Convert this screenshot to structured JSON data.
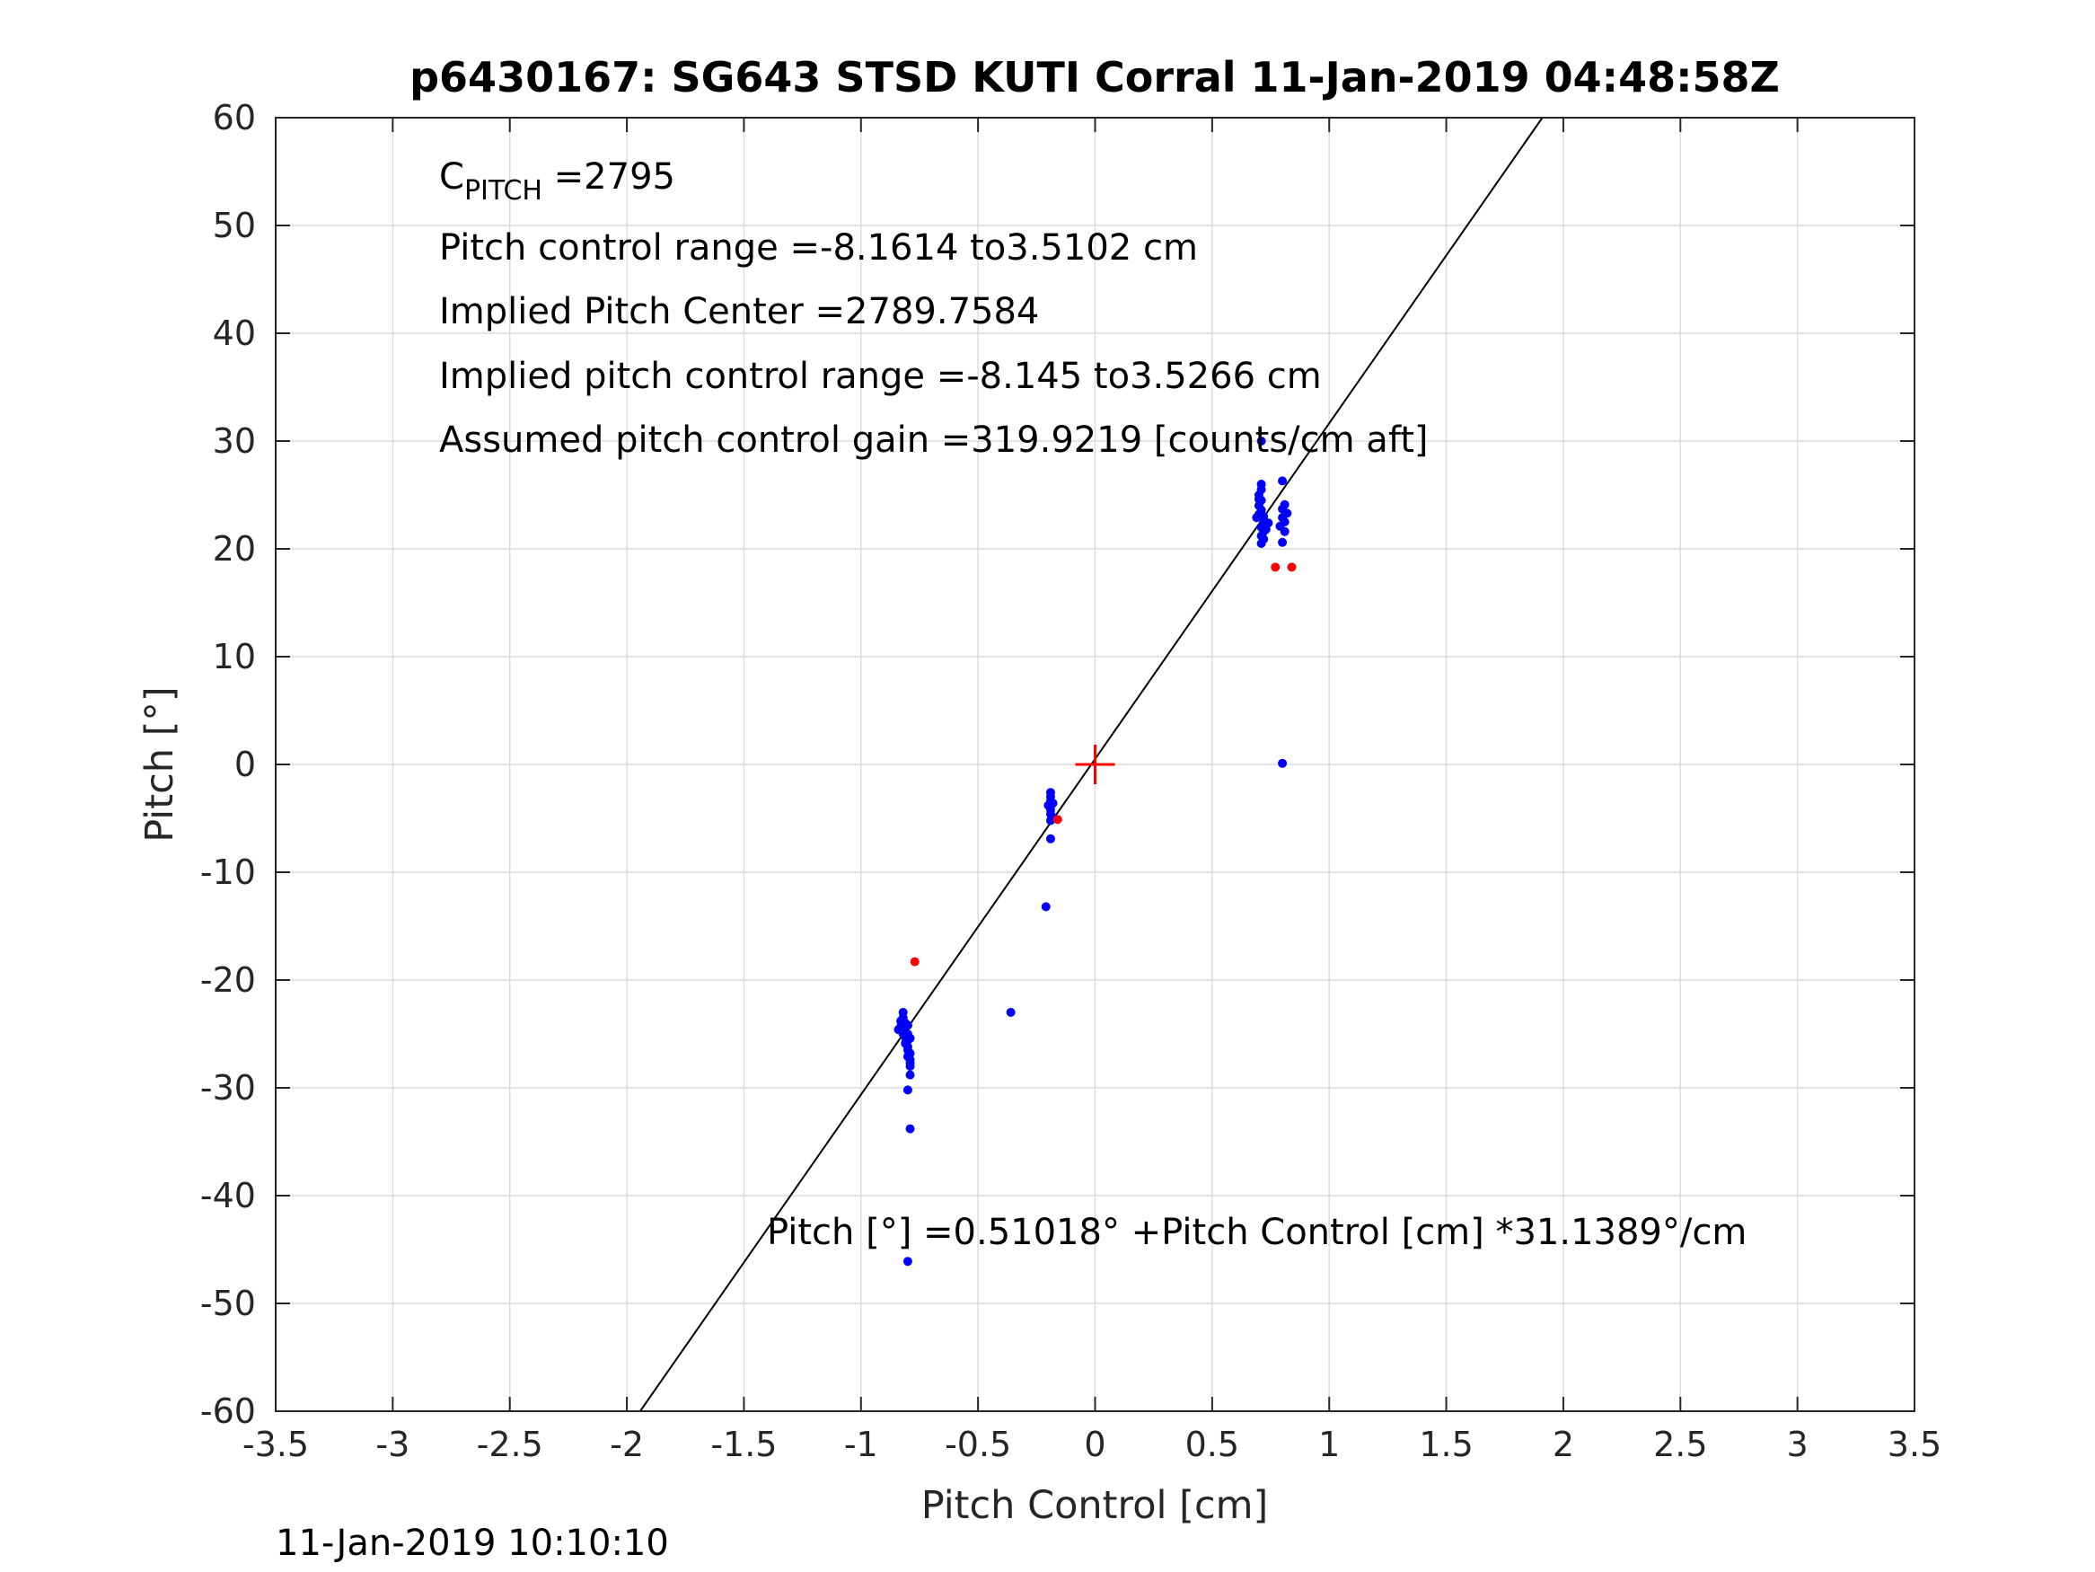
{
  "chart_data": {
    "type": "scatter",
    "title": "p6430167: SG643 STSD KUTI Corral 11-Jan-2019 04:48:58Z",
    "xlabel": "Pitch Control [cm]",
    "ylabel": "Pitch [°]",
    "xlim": [
      -3.5,
      3.5
    ],
    "ylim": [
      -60,
      60
    ],
    "xticks": [
      -3.5,
      -3,
      -2.5,
      -2,
      -1.5,
      -1,
      -0.5,
      0,
      0.5,
      1,
      1.5,
      2,
      2.5,
      3,
      3.5
    ],
    "xtick_labels": [
      "-3.5",
      "-3",
      "-2.5",
      "-2",
      "-1.5",
      "-1",
      "-0.5",
      "0",
      "0.5",
      "1",
      "1.5",
      "2",
      "2.5",
      "3",
      "3.5"
    ],
    "yticks": [
      60,
      50,
      40,
      30,
      20,
      10,
      0,
      -10,
      -20,
      -30,
      -40,
      -50,
      -60
    ],
    "ytick_labels": [
      "60",
      "50",
      "40",
      "30",
      "20",
      "10",
      "0",
      "-10",
      "-20",
      "-30",
      "-40",
      "-50",
      "-60"
    ],
    "grid": true,
    "fit_line": {
      "intercept": 0.51018,
      "slope": 31.1389,
      "color": "#000000"
    },
    "center_marker": {
      "x": 0,
      "y": 0,
      "color": "#ff0000"
    },
    "annotations": {
      "c_pitch_main": "C",
      "c_pitch_sub": "PITCH",
      "c_pitch_value": " =2795",
      "range": "Pitch control range =-8.1614 to3.5102 cm",
      "center": "Implied Pitch Center =2789.7584",
      "implied_range": "Implied pitch control range =-8.145 to3.5266 cm",
      "gain": "Assumed pitch control gain =319.9219 [counts/cm aft]",
      "equation": "Pitch [°] =0.51018° +Pitch Control [cm] *31.1389°/cm"
    },
    "footer": "11-Jan-2019 10:10:10",
    "series": [
      {
        "color": "#0000ff",
        "points": [
          [
            -0.82,
            -23.0
          ],
          [
            -0.82,
            -23.5
          ],
          [
            -0.81,
            -24.0
          ],
          [
            -0.83,
            -24.3
          ],
          [
            -0.84,
            -24.6
          ],
          [
            -0.82,
            -24.9
          ],
          [
            -0.8,
            -25.0
          ],
          [
            -0.81,
            -25.3
          ],
          [
            -0.8,
            -25.6
          ],
          [
            -0.81,
            -25.9
          ],
          [
            -0.8,
            -26.2
          ],
          [
            -0.8,
            -26.5
          ],
          [
            -0.79,
            -26.8
          ],
          [
            -0.8,
            -27.1
          ],
          [
            -0.79,
            -27.4
          ],
          [
            -0.79,
            -27.7
          ],
          [
            -0.79,
            -28.0
          ],
          [
            -0.82,
            -25.0
          ],
          [
            -0.83,
            -23.8
          ],
          [
            -0.81,
            -25.8
          ],
          [
            -0.8,
            -24.2
          ],
          [
            -0.79,
            -25.4
          ],
          [
            -0.79,
            -28.8
          ],
          [
            -0.8,
            -30.2
          ],
          [
            -0.79,
            -33.8
          ],
          [
            -0.8,
            -46.1
          ],
          [
            -0.36,
            -23.0
          ],
          [
            -0.21,
            -13.2
          ],
          [
            -0.19,
            -6.9
          ],
          [
            -0.19,
            -2.6
          ],
          [
            -0.19,
            -3.0
          ],
          [
            -0.19,
            -3.4
          ],
          [
            -0.2,
            -3.8
          ],
          [
            -0.19,
            -4.2
          ],
          [
            -0.19,
            -4.6
          ],
          [
            -0.18,
            -4.9
          ],
          [
            -0.19,
            -5.2
          ],
          [
            -0.18,
            -3.6
          ],
          [
            0.71,
            30.0
          ],
          [
            0.71,
            26.0
          ],
          [
            0.71,
            25.5
          ],
          [
            0.7,
            25.0
          ],
          [
            0.71,
            24.5
          ],
          [
            0.7,
            24.0
          ],
          [
            0.71,
            23.6
          ],
          [
            0.7,
            23.2
          ],
          [
            0.69,
            22.9
          ],
          [
            0.72,
            22.6
          ],
          [
            0.73,
            22.3
          ],
          [
            0.71,
            22.0
          ],
          [
            0.72,
            21.6
          ],
          [
            0.71,
            21.2
          ],
          [
            0.72,
            20.9
          ],
          [
            0.71,
            20.5
          ],
          [
            0.73,
            21.8
          ],
          [
            0.74,
            22.4
          ],
          [
            0.72,
            23.0
          ],
          [
            0.7,
            24.6
          ],
          [
            0.8,
            26.3
          ],
          [
            0.81,
            24.1
          ],
          [
            0.8,
            23.7
          ],
          [
            0.82,
            23.3
          ],
          [
            0.8,
            22.9
          ],
          [
            0.81,
            22.5
          ],
          [
            0.79,
            22.1
          ],
          [
            0.81,
            21.6
          ],
          [
            0.8,
            20.6
          ],
          [
            0.8,
            0.1
          ]
        ]
      },
      {
        "color": "#ff0000",
        "points": [
          [
            -0.77,
            -18.3
          ],
          [
            -0.16,
            -5.1
          ],
          [
            0.77,
            18.3
          ],
          [
            0.84,
            18.3
          ]
        ]
      }
    ]
  }
}
